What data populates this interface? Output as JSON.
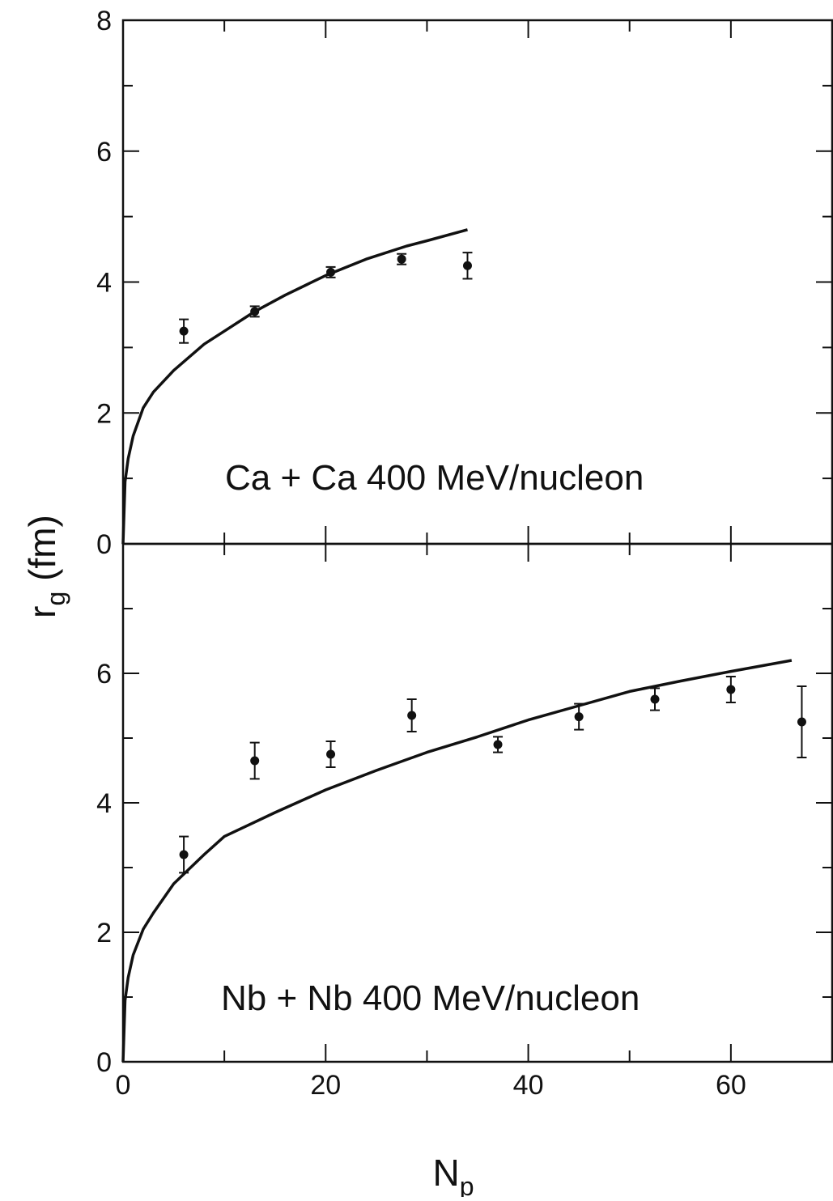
{
  "chart_data": [
    {
      "type": "scatter",
      "title": "",
      "annotation": "Ca + Ca 400 MeV/nucleon",
      "xlabel": "",
      "ylabel": "r_g (fm)",
      "xlim": [
        0,
        70
      ],
      "ylim": [
        0,
        8
      ],
      "yticks": [
        "0",
        "2",
        "4",
        "6",
        "8"
      ],
      "grid": false,
      "series": [
        {
          "kind": "points_with_errorbars",
          "x": [
            6,
            13,
            20.5,
            27.5,
            34
          ],
          "y": [
            3.25,
            3.55,
            4.15,
            4.35,
            4.25
          ],
          "yerr": [
            0.18,
            0.08,
            0.08,
            0.08,
            0.2
          ]
        },
        {
          "kind": "curve",
          "x": [
            0,
            0.2,
            0.5,
            1,
            2,
            3,
            5,
            8,
            10,
            13,
            16,
            20,
            24,
            28,
            30,
            34
          ],
          "y": [
            0,
            0.95,
            1.3,
            1.65,
            2.08,
            2.32,
            2.65,
            3.05,
            3.25,
            3.55,
            3.8,
            4.1,
            4.35,
            4.55,
            4.63,
            4.8
          ]
        }
      ]
    },
    {
      "type": "scatter",
      "title": "",
      "annotation": "Nb + Nb 400 MeV/nucleon",
      "xlabel": "N_p",
      "ylabel": "r_g (fm)",
      "xlim": [
        0,
        70
      ],
      "ylim": [
        0,
        8
      ],
      "xticks": [
        "0",
        "20",
        "40",
        "60"
      ],
      "yticks": [
        "0",
        "2",
        "4",
        "6"
      ],
      "grid": false,
      "series": [
        {
          "kind": "points_with_errorbars",
          "x": [
            6,
            13,
            20.5,
            28.5,
            37,
            45,
            52.5,
            60,
            67
          ],
          "y": [
            3.2,
            4.65,
            4.75,
            5.35,
            4.9,
            5.33,
            5.6,
            5.75,
            5.25
          ],
          "yerr": [
            0.28,
            0.28,
            0.2,
            0.25,
            0.12,
            0.2,
            0.17,
            0.2,
            0.55
          ]
        },
        {
          "kind": "curve",
          "x": [
            0,
            0.2,
            0.5,
            1,
            2,
            3,
            5,
            8,
            10,
            15,
            20,
            25,
            30,
            35,
            40,
            45,
            50,
            55,
            60,
            66
          ],
          "y": [
            0,
            0.95,
            1.3,
            1.65,
            2.05,
            2.3,
            2.75,
            3.2,
            3.48,
            3.85,
            4.2,
            4.5,
            4.78,
            5.02,
            5.28,
            5.5,
            5.72,
            5.88,
            6.03,
            6.2
          ]
        }
      ]
    }
  ],
  "labels": {
    "top_annotation": "Ca + Ca 400 MeV/nucleon",
    "bottom_annotation": "Nb + Nb 400 MeV/nucleon",
    "y_main": "r",
    "y_sub": "g",
    "y_unit": " (fm)",
    "x_main": "N",
    "x_sub": "p"
  }
}
